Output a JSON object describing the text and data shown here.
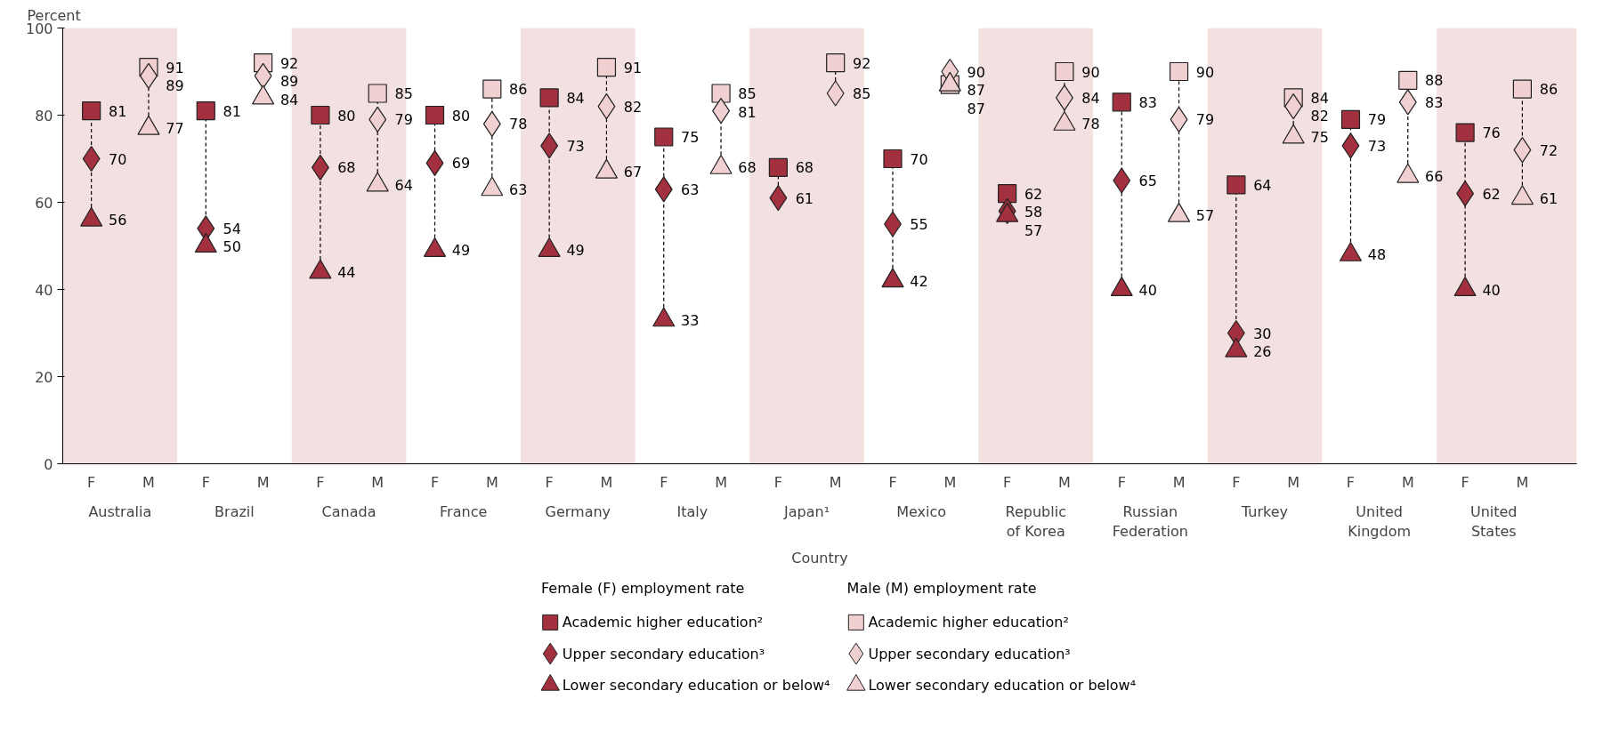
{
  "chart_data": {
    "type": "scatter",
    "ylabel": "Percent",
    "xlabel": "Country",
    "legend_title": "Female (F) employment rate",
    "categories": [
      "F",
      "M",
      "F",
      "M",
      "F",
      "M",
      "F",
      "M",
      "F",
      "M",
      "F",
      "M",
      "F",
      "M",
      "F",
      "M",
      "F",
      "M",
      "F",
      "M",
      "F",
      "M",
      "F",
      "M",
      "F",
      "M"
    ],
    "annotations": [
      "Australia",
      "Brazil",
      "Canada",
      "France",
      "Germany",
      "Italy",
      "Japan¹",
      "Mexico",
      "Republic of Korea",
      "Russian Federation",
      "Turkey",
      "United Kingdom",
      "United States",
      "Male (M) employment rate"
    ],
    "ylim": [
      0,
      100
    ],
    "yticks": [
      0,
      20,
      40,
      60,
      80,
      100
    ],
    "grid": false,
    "legend": "bottom",
    "data_labels": true,
    "series": [
      {
        "name": "Academic higher education²",
        "color": "#a3303f",
        "marker": "square",
        "values": [
          81,
          null,
          81,
          null,
          80,
          null,
          80,
          null,
          84,
          null,
          75,
          null,
          68,
          null,
          70,
          null,
          62,
          null,
          83,
          null,
          64,
          null,
          79,
          null,
          76,
          null
        ]
      },
      {
        "name": "Upper secondary education³",
        "color": "#a3303f",
        "marker": "diamond",
        "values": [
          70,
          null,
          54,
          null,
          68,
          null,
          69,
          null,
          73,
          null,
          63,
          null,
          61,
          null,
          55,
          null,
          58,
          null,
          65,
          null,
          30,
          null,
          73,
          null,
          62,
          null
        ]
      },
      {
        "name": "Lower secondary education or below⁴",
        "color": "#a3303f",
        "marker": "triangle",
        "values": [
          56,
          null,
          50,
          null,
          44,
          null,
          49,
          null,
          49,
          null,
          33,
          null,
          null,
          null,
          42,
          null,
          57,
          null,
          40,
          null,
          26,
          null,
          48,
          null,
          40,
          null
        ]
      },
      {
        "name": "Academic higher education²",
        "color": "#f0d0d0",
        "marker": "square",
        "values": [
          null,
          91,
          null,
          92,
          null,
          85,
          null,
          86,
          null,
          91,
          null,
          85,
          null,
          92,
          null,
          87,
          null,
          90,
          null,
          90,
          null,
          84,
          null,
          88,
          null,
          86
        ]
      },
      {
        "name": "Upper secondary education³",
        "color": "#f0d0d0",
        "marker": "diamond",
        "values": [
          null,
          89,
          null,
          89,
          null,
          79,
          null,
          78,
          null,
          82,
          null,
          81,
          null,
          85,
          null,
          90,
          null,
          84,
          null,
          79,
          null,
          82,
          null,
          83,
          null,
          72
        ]
      },
      {
        "name": "Lower secondary education or below⁴",
        "color": "#f0d0d0",
        "marker": "triangle",
        "values": [
          null,
          77,
          null,
          84,
          null,
          64,
          null,
          63,
          null,
          67,
          null,
          68,
          null,
          null,
          null,
          87,
          null,
          78,
          null,
          57,
          null,
          75,
          null,
          66,
          null,
          61
        ]
      }
    ]
  }
}
